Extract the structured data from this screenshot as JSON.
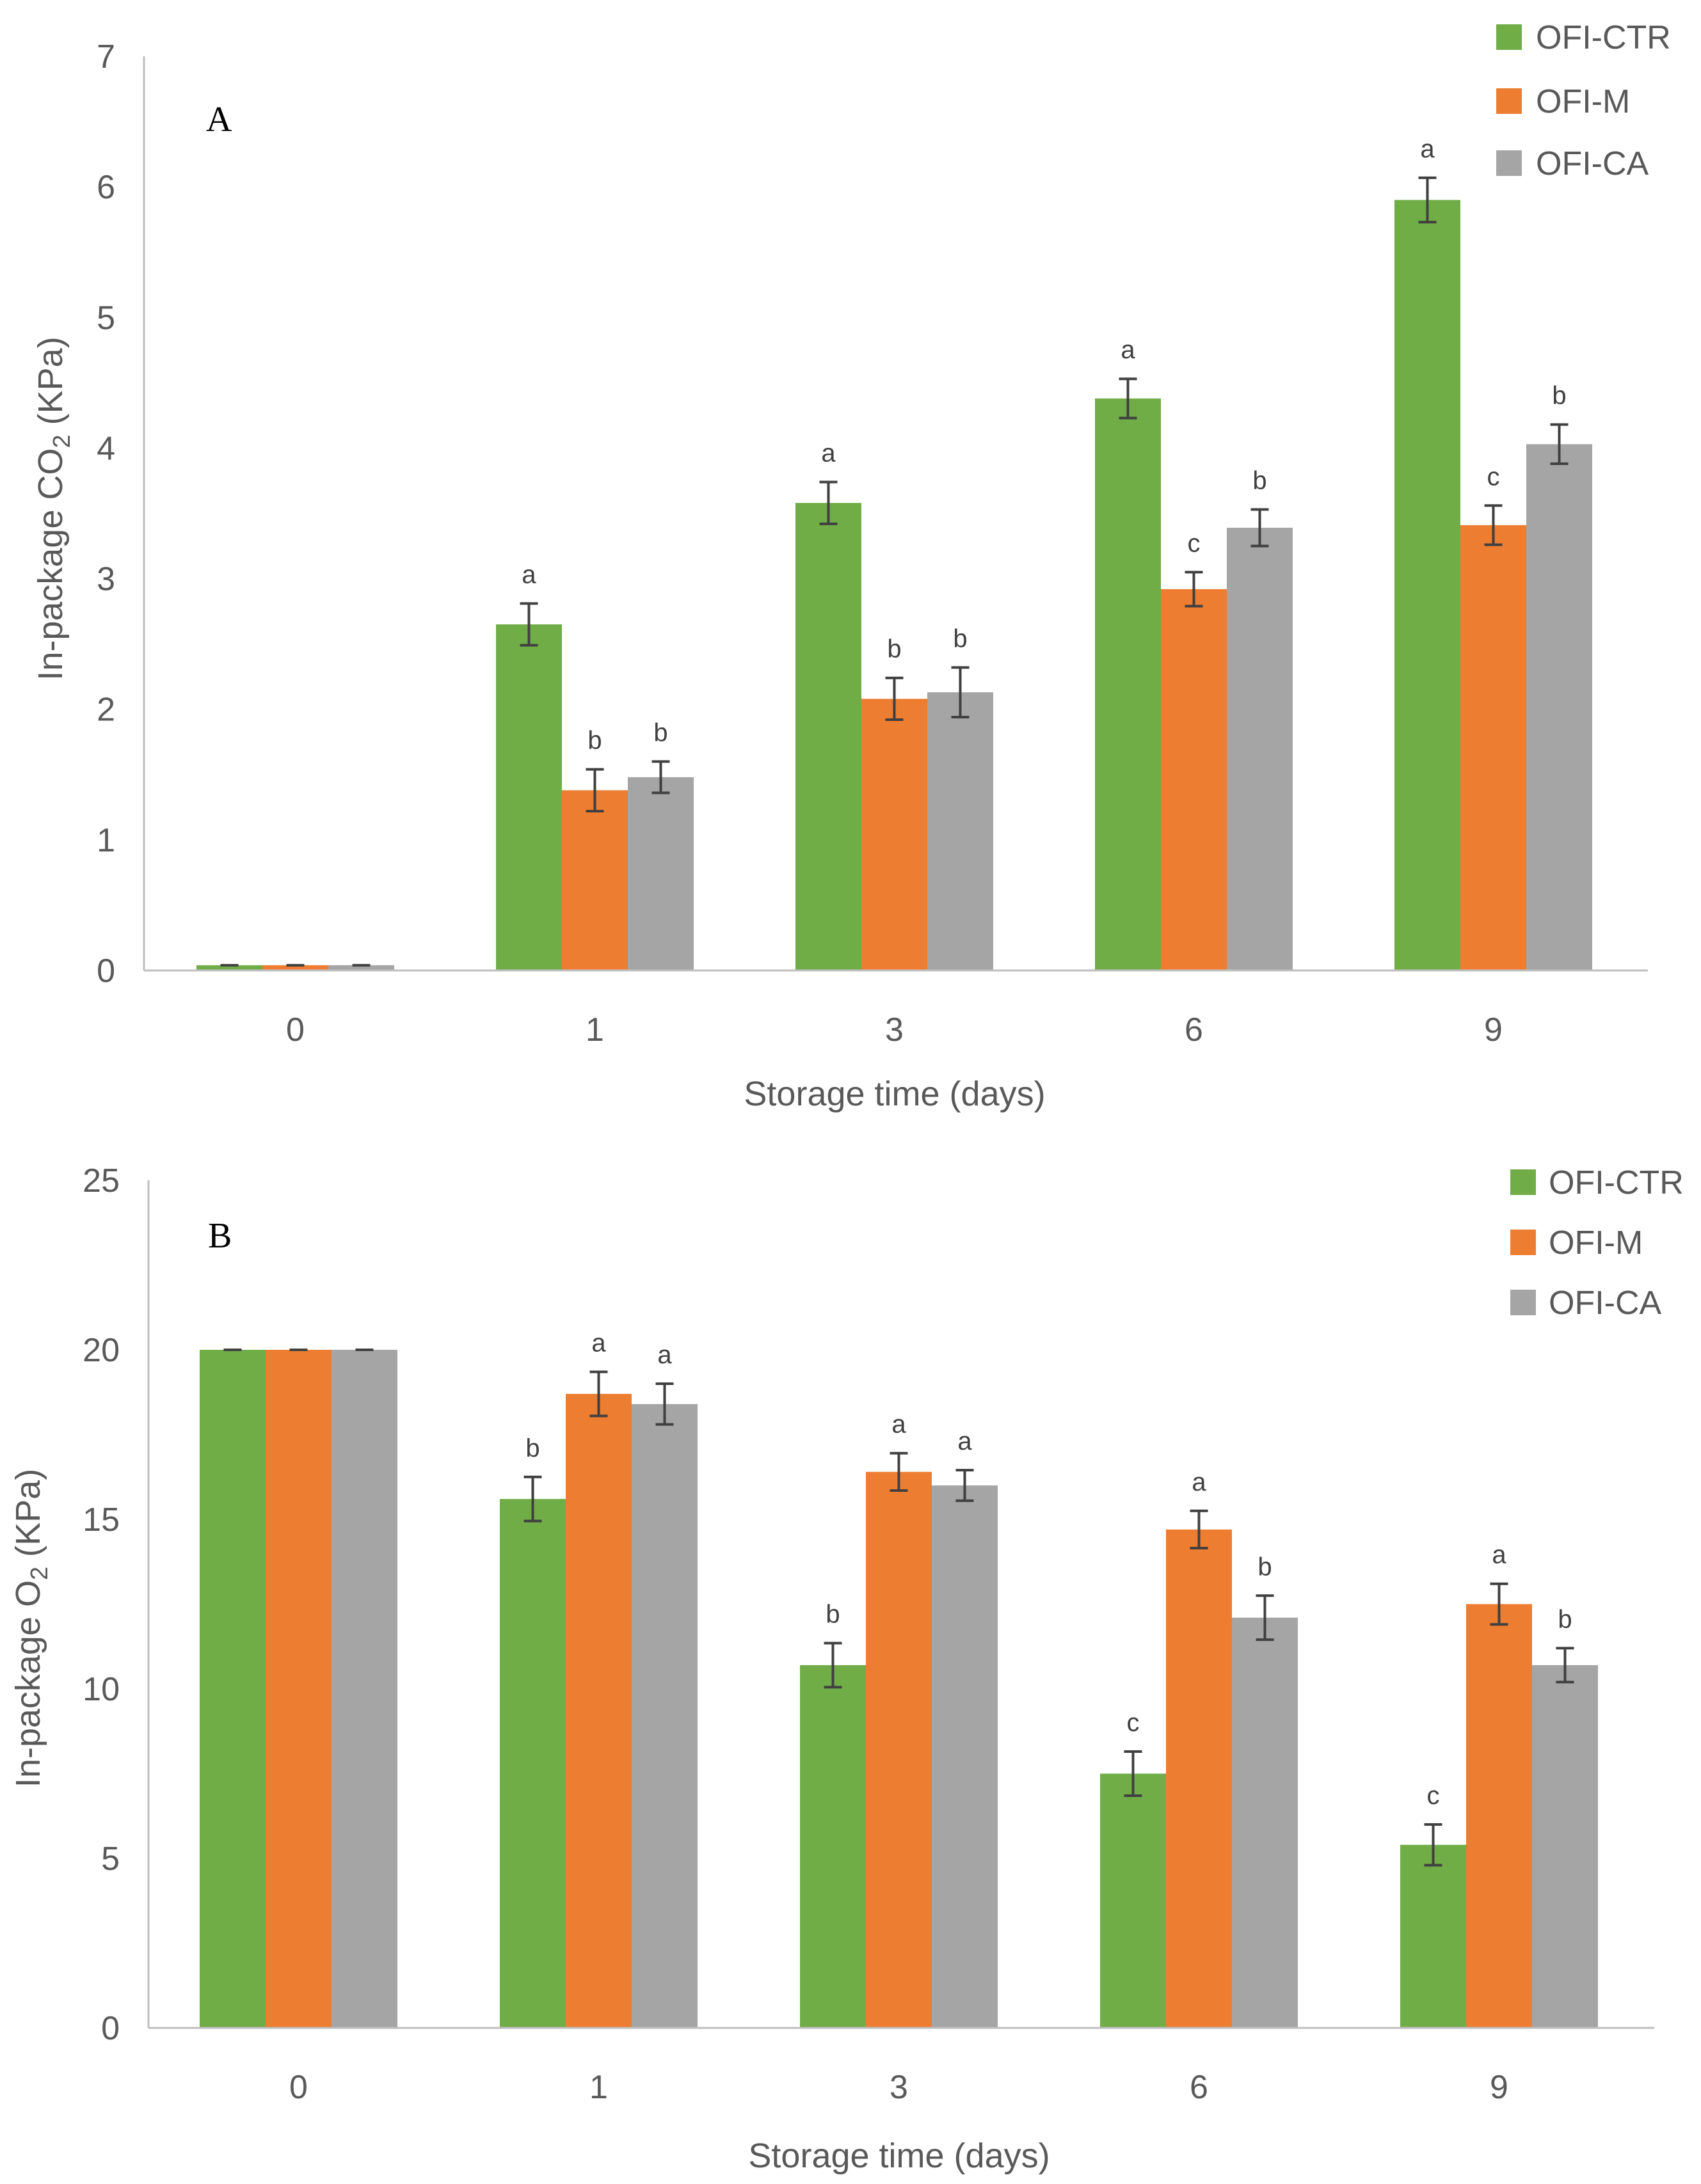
{
  "colors": {
    "OFI-CTR": "#70ad47",
    "OFI-M": "#ed7d31",
    "OFI-CA": "#a5a5a5"
  },
  "chart_data": [
    {
      "panel": "A",
      "type": "bar",
      "categories": [
        "0",
        "1",
        "3",
        "6",
        "9"
      ],
      "xlabel": "Storage time (days)",
      "ylabel_main": "In-package CO",
      "ylabel_sub": "2",
      "ylabel_tail": " (KPa)",
      "ylim": [
        0,
        7
      ],
      "yticks": [
        0,
        1,
        2,
        3,
        4,
        5,
        6,
        7
      ],
      "legend_position": "top-right",
      "series": [
        {
          "name": "OFI-CTR",
          "values": [
            0.04,
            2.65,
            3.58,
            4.38,
            5.9
          ],
          "errors": [
            0,
            0.16,
            0.16,
            0.15,
            0.17
          ],
          "labels": [
            "",
            "a",
            "a",
            "a",
            "a"
          ]
        },
        {
          "name": "OFI-M",
          "values": [
            0.04,
            1.38,
            2.08,
            2.92,
            3.41
          ],
          "errors": [
            0,
            0.16,
            0.16,
            0.13,
            0.15
          ],
          "labels": [
            "",
            "b",
            "b",
            "c",
            "c"
          ]
        },
        {
          "name": "OFI-CA",
          "values": [
            0.04,
            1.48,
            2.13,
            3.39,
            4.03
          ],
          "errors": [
            0,
            0.12,
            0.19,
            0.14,
            0.15
          ],
          "labels": [
            "",
            "b",
            "b",
            "b",
            "b"
          ]
        }
      ]
    },
    {
      "panel": "B",
      "type": "bar",
      "categories": [
        "0",
        "1",
        "3",
        "6",
        "9"
      ],
      "xlabel": "Storage time (days)",
      "ylabel_main": "In-package O",
      "ylabel_sub": "2",
      "ylabel_tail": " (KPa)",
      "ylim": [
        0,
        25
      ],
      "yticks": [
        0,
        5,
        10,
        15,
        20,
        25
      ],
      "legend_position": "top-right",
      "series": [
        {
          "name": "OFI-CTR",
          "values": [
            20,
            15.6,
            10.7,
            7.5,
            5.4
          ],
          "errors": [
            0,
            0.65,
            0.65,
            0.65,
            0.6
          ],
          "labels": [
            "",
            "b",
            "b",
            "c",
            "c"
          ]
        },
        {
          "name": "OFI-M",
          "values": [
            20,
            18.7,
            16.4,
            14.7,
            12.5
          ],
          "errors": [
            0,
            0.65,
            0.55,
            0.55,
            0.6
          ],
          "labels": [
            "",
            "a",
            "a",
            "a",
            "a"
          ]
        },
        {
          "name": "OFI-CA",
          "values": [
            20,
            18.4,
            16.0,
            12.1,
            10.7
          ],
          "errors": [
            0,
            0.6,
            0.45,
            0.65,
            0.5
          ],
          "labels": [
            "",
            "a",
            "a",
            "b",
            "b"
          ]
        }
      ]
    }
  ]
}
